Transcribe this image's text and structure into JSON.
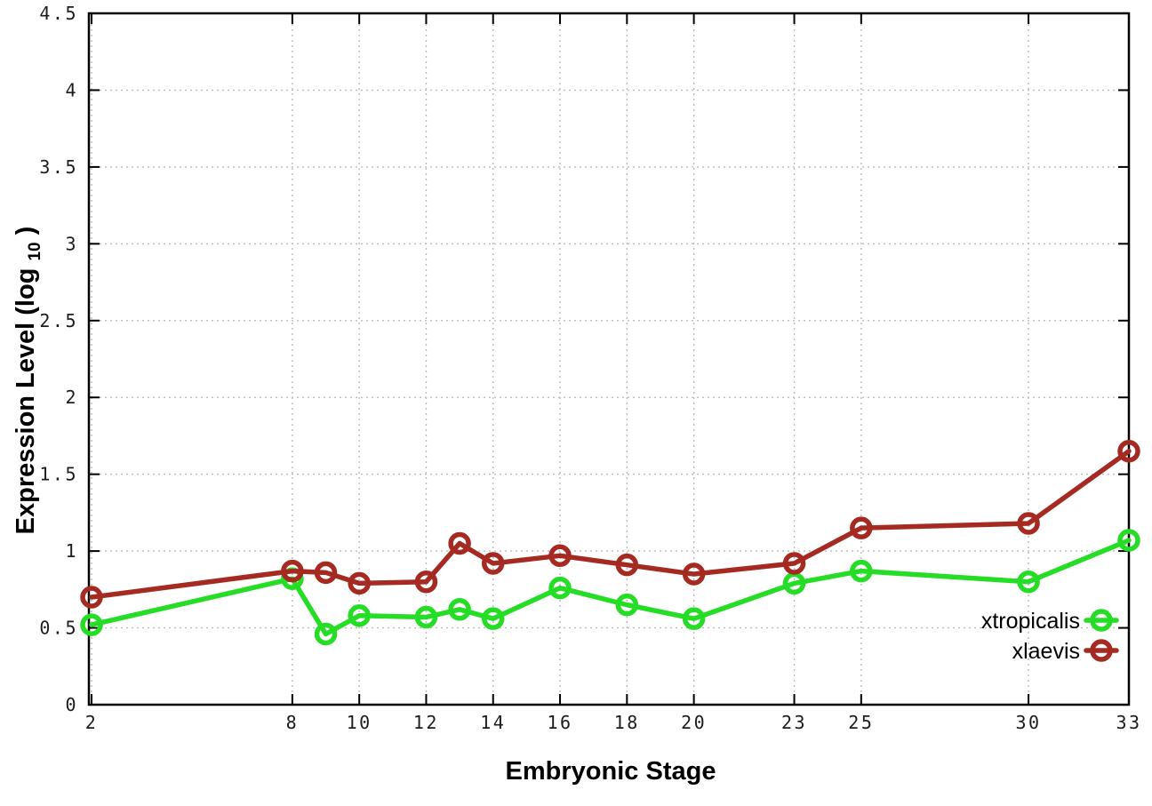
{
  "chart_data": {
    "type": "line",
    "title": "",
    "xlabel": "Embryonic Stage",
    "ylabel": "Expression Level (log10)",
    "ylabel_parts": {
      "prefix": "Expression Level (log",
      "sub": "10",
      "suffix": ")"
    },
    "x": [
      2,
      8,
      9,
      10,
      12,
      13,
      14,
      16,
      18,
      20,
      23,
      25,
      30,
      33
    ],
    "xlim": [
      2,
      33
    ],
    "ylim": [
      0,
      4.5
    ],
    "xticks": [
      2,
      8,
      10,
      12,
      14,
      16,
      18,
      20,
      23,
      25,
      30,
      33
    ],
    "xtick_labels": [
      "2",
      "8",
      "10",
      "12",
      "14",
      "16",
      "18",
      "20",
      "23",
      "25",
      "30",
      "33"
    ],
    "yticks": [
      0,
      0.5,
      1,
      1.5,
      2,
      2.5,
      3,
      3.5,
      4,
      4.5
    ],
    "ytick_labels": [
      "0",
      "0.5",
      "1",
      "1.5",
      "2",
      "2.5",
      "3",
      "3.5",
      "4",
      "4.5"
    ],
    "grid": true,
    "grid_color": "#bcbcbc",
    "axis_color": "#000000",
    "background_color": "#ffffff",
    "marker": "open-circle",
    "legend_position": "bottom-right",
    "series": [
      {
        "name": "xtropicalis",
        "color": "#25dd25",
        "values": [
          0.52,
          0.82,
          0.46,
          0.58,
          0.57,
          0.62,
          0.56,
          0.76,
          0.65,
          0.56,
          0.79,
          0.87,
          0.8,
          1.07
        ]
      },
      {
        "name": "xlaevis",
        "color": "#a52a22",
        "values": [
          0.7,
          0.87,
          0.86,
          0.79,
          0.8,
          1.05,
          0.92,
          0.97,
          0.91,
          0.85,
          0.92,
          1.15,
          1.18,
          1.65
        ]
      }
    ]
  }
}
